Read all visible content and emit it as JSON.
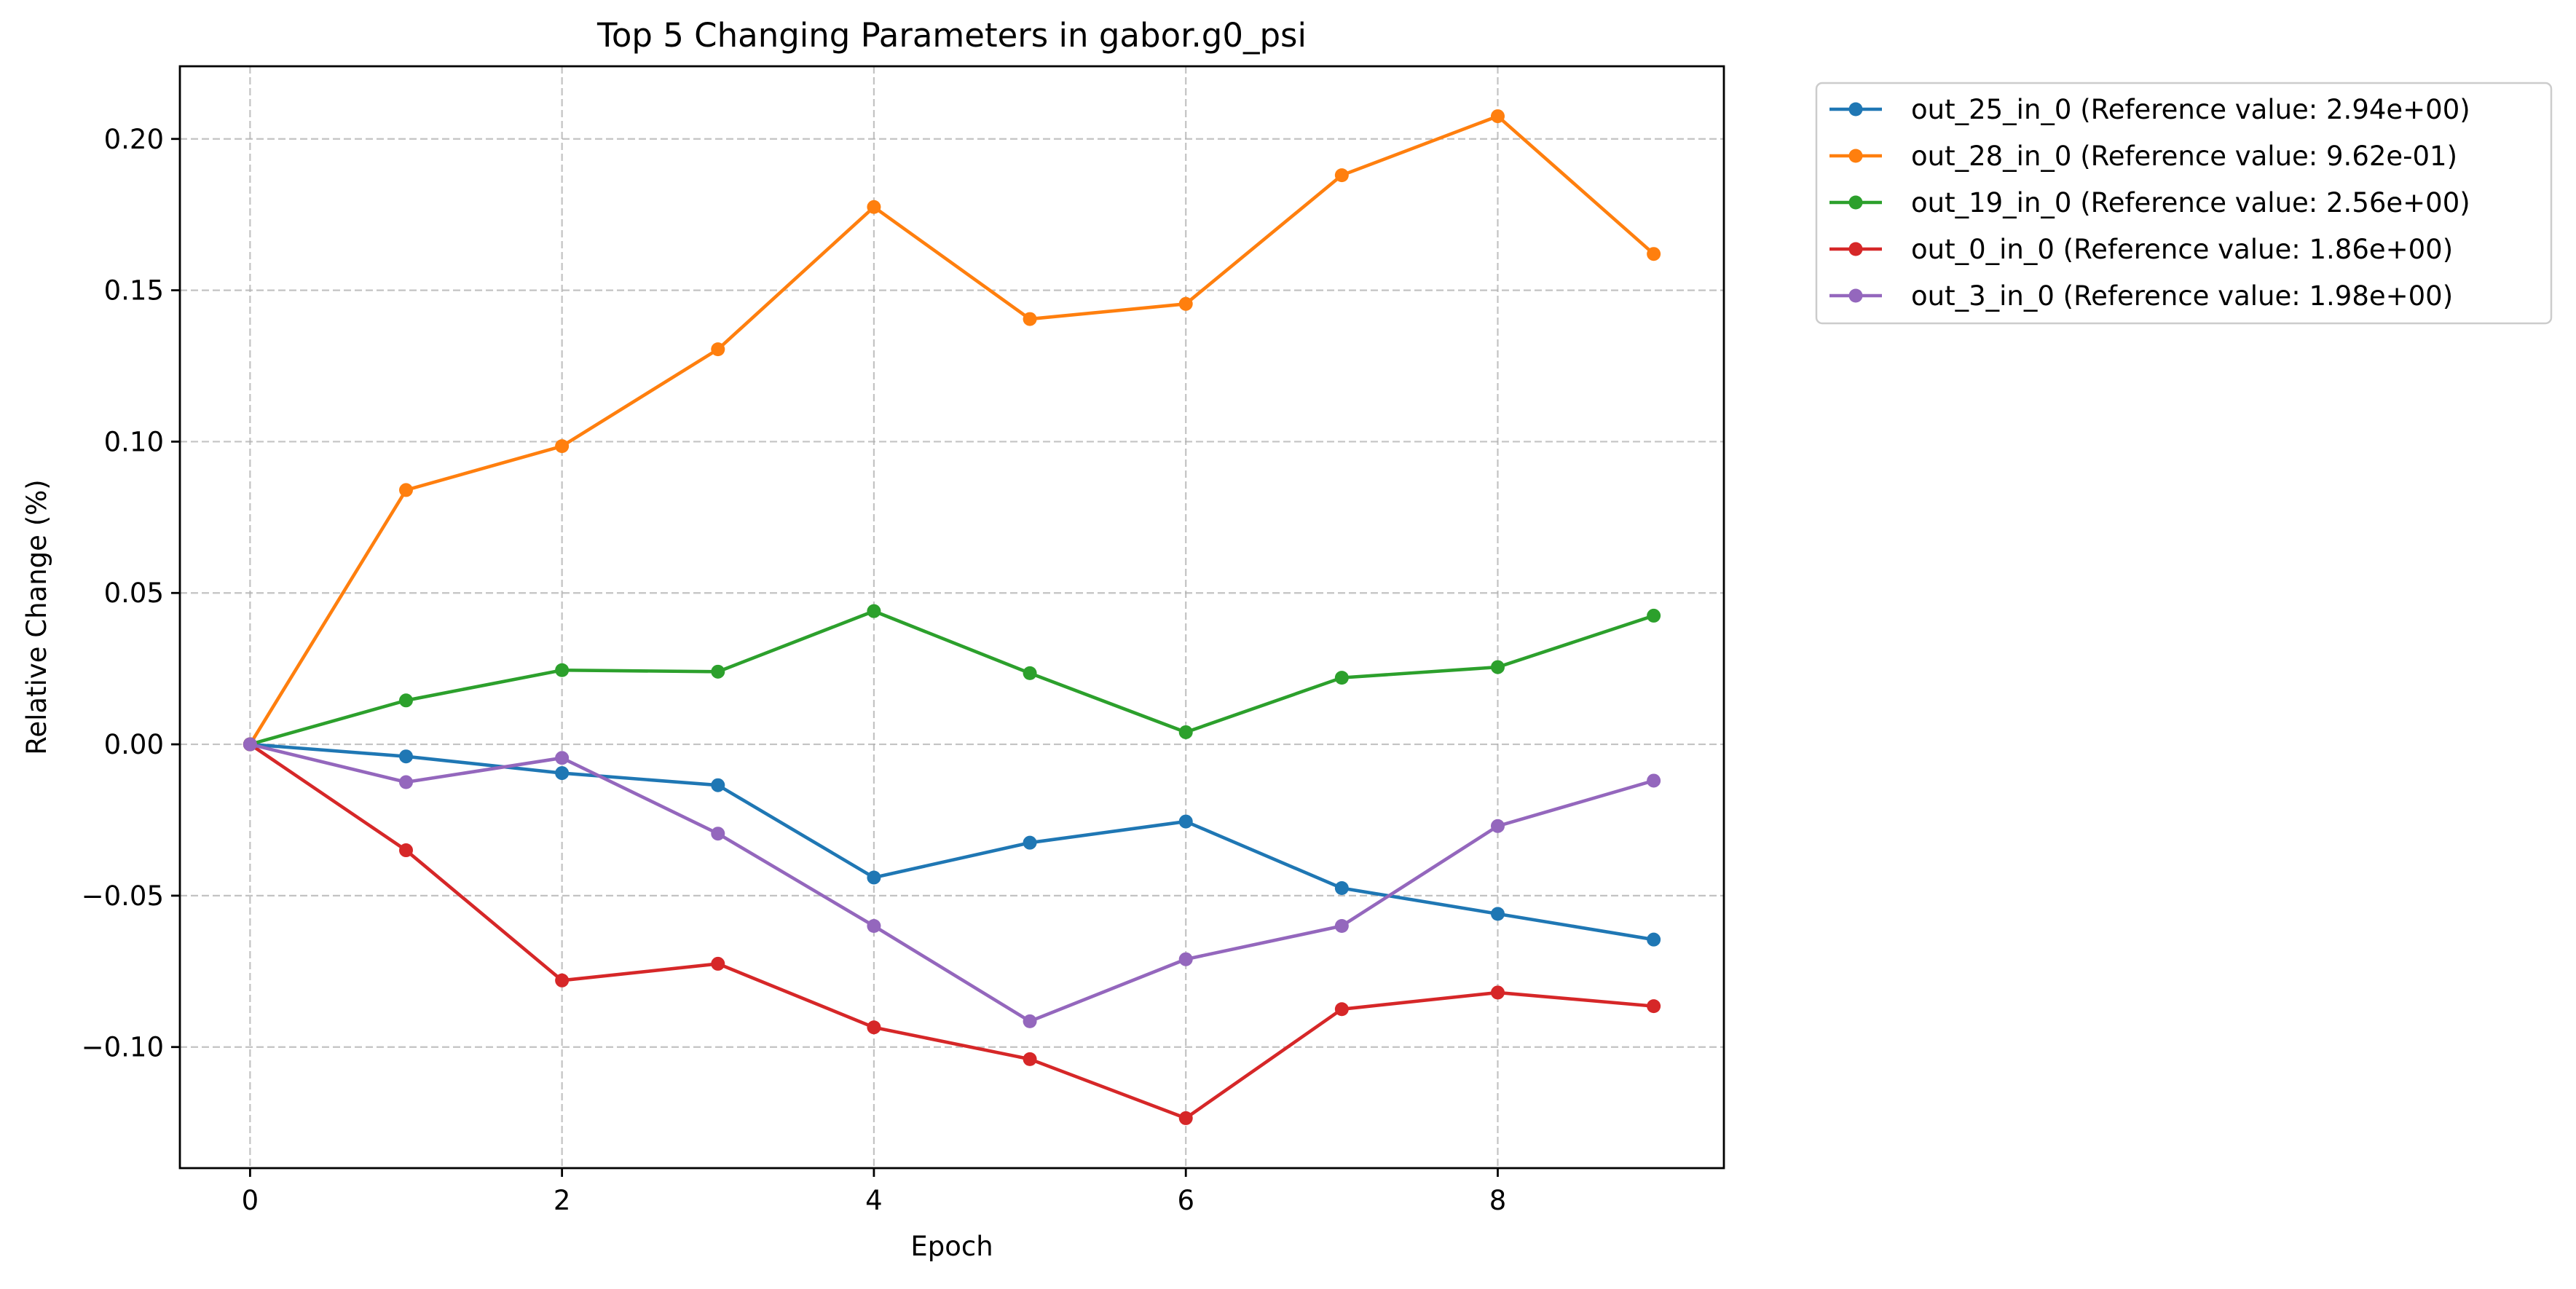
{
  "chart_data": {
    "type": "line",
    "title": "Top 5 Changing Parameters in gabor.g0_psi",
    "xlabel": "Epoch",
    "ylabel": "Relative Change (%)",
    "xlim": [
      -0.45,
      9.45
    ],
    "ylim": [
      -0.14,
      0.224
    ],
    "xticks": [
      0,
      2,
      4,
      6,
      8
    ],
    "xtick_labels": [
      "0",
      "2",
      "4",
      "6",
      "8"
    ],
    "yticks": [
      -0.1,
      -0.05,
      0.0,
      0.05,
      0.1,
      0.15,
      0.2
    ],
    "ytick_labels": [
      "−0.10",
      "−0.05",
      "0.00",
      "0.05",
      "0.10",
      "0.15",
      "0.20"
    ],
    "grid": true,
    "legend_position": "outside-upper-right",
    "x": [
      0,
      1,
      2,
      3,
      4,
      5,
      6,
      7,
      8,
      9
    ],
    "series": [
      {
        "name": "out_25_in_0 (Reference value: 2.94e+00)",
        "color": "#1f77b4",
        "values": [
          0.0,
          -0.004,
          -0.0095,
          -0.0135,
          -0.044,
          -0.0325,
          -0.0255,
          -0.0475,
          -0.056,
          -0.0645
        ]
      },
      {
        "name": "out_28_in_0 (Reference value: 9.62e-01)",
        "color": "#ff7f0e",
        "values": [
          0.0,
          0.084,
          0.0985,
          0.1305,
          0.1775,
          0.1405,
          0.1455,
          0.188,
          0.2075,
          0.162
        ]
      },
      {
        "name": "out_19_in_0 (Reference value: 2.56e+00)",
        "color": "#2ca02c",
        "values": [
          0.0,
          0.0145,
          0.0245,
          0.024,
          0.044,
          0.0235,
          0.004,
          0.022,
          0.0255,
          0.0425
        ]
      },
      {
        "name": "out_0_in_0 (Reference value: 1.86e+00)",
        "color": "#d62728",
        "values": [
          0.0,
          -0.035,
          -0.078,
          -0.0725,
          -0.0935,
          -0.104,
          -0.1235,
          -0.0875,
          -0.082,
          -0.0865
        ]
      },
      {
        "name": "out_3_in_0 (Reference value: 1.98e+00)",
        "color": "#9467bd",
        "values": [
          0.0,
          -0.0125,
          -0.0045,
          -0.0295,
          -0.06,
          -0.0915,
          -0.071,
          -0.06,
          -0.027,
          -0.012
        ]
      }
    ]
  }
}
